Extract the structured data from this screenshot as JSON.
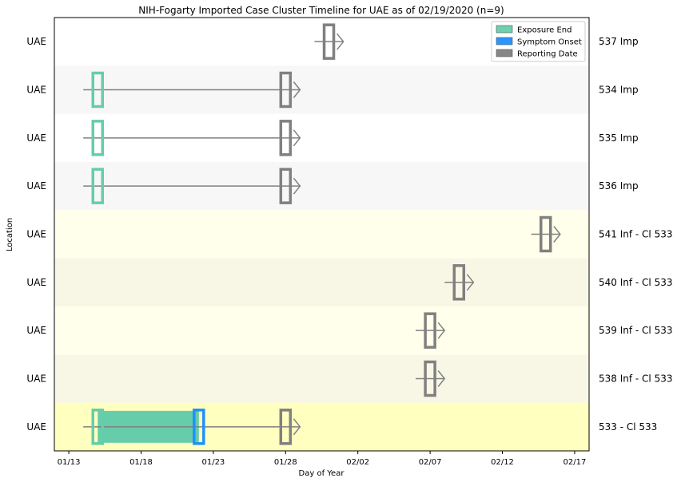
{
  "chart_data": {
    "type": "timeline",
    "title": "NIH-Fogarty Imported Case Cluster Timeline for UAE as of 02/19/2020 (n=9)",
    "xlabel": "Day of Year",
    "ylabel": "Location",
    "x_range": [
      "2020-01-12",
      "2020-02-18"
    ],
    "x_ticks": [
      "01/13",
      "01/18",
      "01/23",
      "01/28",
      "02/02",
      "02/07",
      "02/12",
      "02/17"
    ],
    "legend": {
      "position": "top-right",
      "items": [
        {
          "label": "Exposure End",
          "color": "#66cdaa"
        },
        {
          "label": "Symptom Onset",
          "color": "#1e90ff"
        },
        {
          "label": "Reporting Date",
          "color": "#808080"
        }
      ]
    },
    "rows": [
      {
        "location": "UAE",
        "case": "537 Imp",
        "bg": "#ffffff",
        "exposure_end": null,
        "symptom_onset": null,
        "reporting_date": "2020-01-31",
        "line_start": "2020-01-30",
        "line_end": "2020-02-01"
      },
      {
        "location": "UAE",
        "case": "534 Imp",
        "bg": "#f7f7f7",
        "exposure_end": "2020-01-15",
        "symptom_onset": null,
        "reporting_date": "2020-01-28",
        "line_start": "2020-01-14",
        "line_end": "2020-01-29"
      },
      {
        "location": "UAE",
        "case": "535 Imp",
        "bg": "#ffffff",
        "exposure_end": "2020-01-15",
        "symptom_onset": null,
        "reporting_date": "2020-01-28",
        "line_start": "2020-01-14",
        "line_end": "2020-01-29"
      },
      {
        "location": "UAE",
        "case": "536 Imp",
        "bg": "#f7f7f7",
        "exposure_end": "2020-01-15",
        "symptom_onset": null,
        "reporting_date": "2020-01-28",
        "line_start": "2020-01-14",
        "line_end": "2020-01-29"
      },
      {
        "location": "UAE",
        "case": "541 Inf - Cl 533",
        "bg": "#ffffeb",
        "exposure_end": null,
        "symptom_onset": null,
        "reporting_date": "2020-02-15",
        "line_start": "2020-02-14",
        "line_end": "2020-02-16"
      },
      {
        "location": "UAE",
        "case": "540 Inf - Cl 533",
        "bg": "#f8f7e6",
        "exposure_end": null,
        "symptom_onset": null,
        "reporting_date": "2020-02-09",
        "line_start": "2020-02-08",
        "line_end": "2020-02-10"
      },
      {
        "location": "UAE",
        "case": "539 Inf - Cl 533",
        "bg": "#ffffeb",
        "exposure_end": null,
        "symptom_onset": null,
        "reporting_date": "2020-02-07",
        "line_start": "2020-02-06",
        "line_end": "2020-02-08"
      },
      {
        "location": "UAE",
        "case": "538 Inf - Cl 533",
        "bg": "#f8f7e6",
        "exposure_end": null,
        "symptom_onset": null,
        "reporting_date": "2020-02-07",
        "line_start": "2020-02-06",
        "line_end": "2020-02-08"
      },
      {
        "location": "UAE",
        "case": "533 - Cl 533",
        "bg": "#ffffc0",
        "exposure_end": "2020-01-15",
        "symptom_onset": "2020-01-22",
        "reporting_date": "2020-01-28",
        "line_start": "2020-01-14",
        "line_end": "2020-01-29",
        "incubation_start": "2020-01-15",
        "incubation_end": "2020-01-22"
      }
    ]
  }
}
